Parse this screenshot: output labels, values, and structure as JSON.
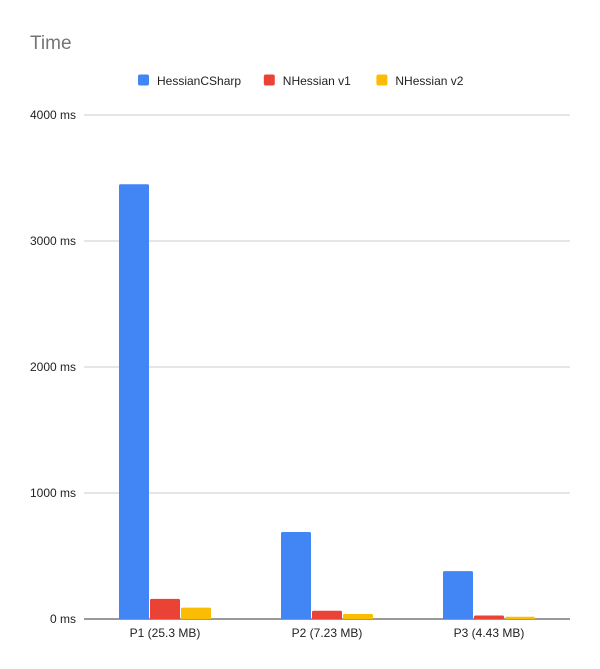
{
  "chart_data": {
    "type": "bar",
    "title": "Time",
    "categories": [
      "P1 (25.3 MB)",
      "P2 (7.23 MB)",
      "P3 (4.43 MB)"
    ],
    "series": [
      {
        "name": "HessianCSharp",
        "color": "#4285F4",
        "values": [
          3450,
          690,
          380
        ]
      },
      {
        "name": "NHessian v1",
        "color": "#EA4335",
        "values": [
          160,
          65,
          28
        ]
      },
      {
        "name": "NHessian v2",
        "color": "#FBBC04",
        "values": [
          90,
          40,
          18
        ]
      }
    ],
    "yticks": [
      "0 ms",
      "1000 ms",
      "2000 ms",
      "3000 ms",
      "4000 ms"
    ],
    "ylim": [
      0,
      4000
    ],
    "xlabel": "",
    "ylabel": "",
    "grid": true,
    "legend_position": "top"
  }
}
